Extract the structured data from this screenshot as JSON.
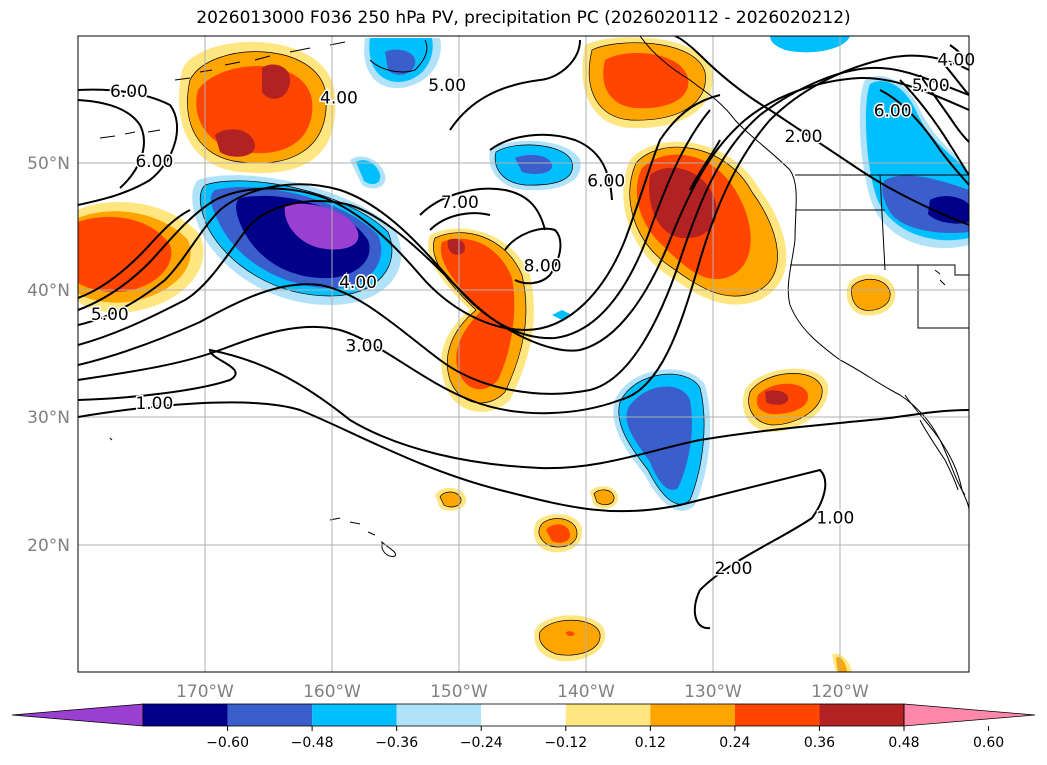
{
  "title": "2026013000 F036 250 hPa PV, precipitation PC (2026020112 - 2026020212)",
  "axes": {
    "lon_ticks": [
      "170°W",
      "160°W",
      "150°W",
      "140°W",
      "130°W",
      "120°W"
    ],
    "lat_ticks": [
      "50°N",
      "40°N",
      "30°N",
      "20°N"
    ]
  },
  "colorbar": {
    "ticks": [
      "−0.60",
      "−0.48",
      "−0.36",
      "−0.24",
      "−0.12",
      "0.12",
      "0.24",
      "0.36",
      "0.48",
      "0.60"
    ],
    "colors": [
      "#9b3fd1",
      "#000089",
      "#3a5fcd",
      "#00bfff",
      "#b0e2fa",
      "#ffffff",
      "#ffe680",
      "#ffa500",
      "#ff4500",
      "#b22222",
      "#ff88aa"
    ],
    "extend": "both"
  },
  "pv_contour_labels": [
    {
      "text": "6.00",
      "lon": -176.0,
      "lat": 55.5
    },
    {
      "text": "6.00",
      "lon": -174.0,
      "lat": 50.0
    },
    {
      "text": "4.00",
      "lon": -159.5,
      "lat": 55.0
    },
    {
      "text": "5.00",
      "lon": -151.0,
      "lat": 56.0
    },
    {
      "text": "7.00",
      "lon": -150.0,
      "lat": 46.8
    },
    {
      "text": "6.00",
      "lon": -138.5,
      "lat": 48.5
    },
    {
      "text": "8.00",
      "lon": -143.5,
      "lat": 41.8
    },
    {
      "text": "4.00",
      "lon": -158.0,
      "lat": 40.5
    },
    {
      "text": "3.00",
      "lon": -157.5,
      "lat": 35.5
    },
    {
      "text": "5.00",
      "lon": -177.5,
      "lat": 38.0
    },
    {
      "text": "1.00",
      "lon": -174.0,
      "lat": 31.0
    },
    {
      "text": "2.00",
      "lon": -123.0,
      "lat": 52.0
    },
    {
      "text": "6.00",
      "lon": -116.0,
      "lat": 54.0
    },
    {
      "text": "5.00",
      "lon": -113.0,
      "lat": 56.0
    },
    {
      "text": "4.00",
      "lon": -111.0,
      "lat": 58.0
    },
    {
      "text": "1.00",
      "lon": -120.5,
      "lat": 22.0
    },
    {
      "text": "2.00",
      "lon": -128.5,
      "lat": 18.0
    }
  ],
  "colors": {
    "coast": "#000000",
    "grid": "#b0b0b0",
    "contour": "#000000",
    "tick_label": "#808080"
  }
}
